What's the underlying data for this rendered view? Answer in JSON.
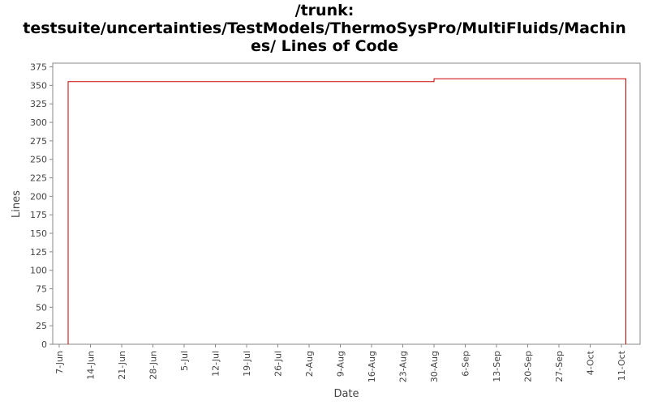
{
  "chart_data": {
    "type": "line",
    "title_lines": [
      "/trunk:",
      "testsuite/uncertainties/TestModels/ThermoSysPro/MultiFluids/Machin",
      "es/ Lines of Code"
    ],
    "xlabel": "Date",
    "ylabel": "Lines",
    "ylim": [
      0,
      380
    ],
    "yticks": [
      0,
      25,
      50,
      75,
      100,
      125,
      150,
      175,
      200,
      225,
      250,
      275,
      300,
      325,
      350,
      375
    ],
    "xticks": [
      "7-Jun",
      "14-Jun",
      "21-Jun",
      "28-Jun",
      "5-Jul",
      "12-Jul",
      "19-Jul",
      "26-Jul",
      "2-Aug",
      "9-Aug",
      "16-Aug",
      "23-Aug",
      "30-Aug",
      "6-Sep",
      "13-Sep",
      "20-Sep",
      "27-Sep",
      "4-Oct",
      "11-Oct"
    ],
    "series": [
      {
        "color": "#cc0000",
        "step": true,
        "points": [
          {
            "x": "9-Jun",
            "y": 0
          },
          {
            "x": "9-Jun",
            "y": 355
          },
          {
            "x": "30-Aug",
            "y": 355
          },
          {
            "x": "30-Aug",
            "y": 359
          },
          {
            "x": "12-Oct",
            "y": 359
          },
          {
            "x": "12-Oct",
            "y": 0
          }
        ]
      }
    ],
    "grid": false
  }
}
